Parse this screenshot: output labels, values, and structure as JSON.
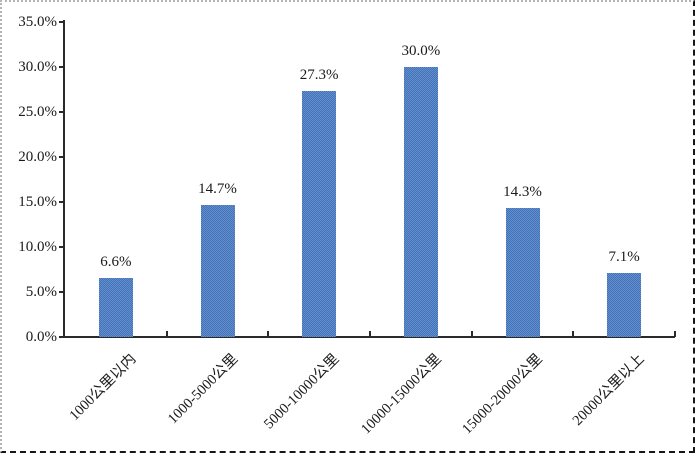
{
  "chart_data": {
    "type": "bar",
    "title": "",
    "xlabel": "",
    "ylabel": "",
    "categories": [
      "1000公里以内",
      "1000-5000公里",
      "5000-10000公里",
      "10000-15000公里",
      "15000-20000公里",
      "20000公里以上"
    ],
    "values": [
      6.6,
      14.7,
      27.3,
      30.0,
      14.3,
      7.1
    ],
    "data_labels": [
      "6.6%",
      "14.7%",
      "27.3%",
      "30.0%",
      "14.3%",
      "7.1%"
    ],
    "y_tick_labels": [
      "0.0%",
      "5.0%",
      "10.0%",
      "15.0%",
      "20.0%",
      "25.0%",
      "30.0%",
      "35.0%"
    ],
    "y_tick_values": [
      0,
      5,
      10,
      15,
      20,
      25,
      30,
      35
    ],
    "ylim": [
      0,
      35
    ],
    "grid": false,
    "legend": false,
    "bar_color": "#4d7fc1",
    "bar_color_light": "#6390cd",
    "bar_color_dark": "#4372b8",
    "axis_color": "#2a2a2a"
  }
}
